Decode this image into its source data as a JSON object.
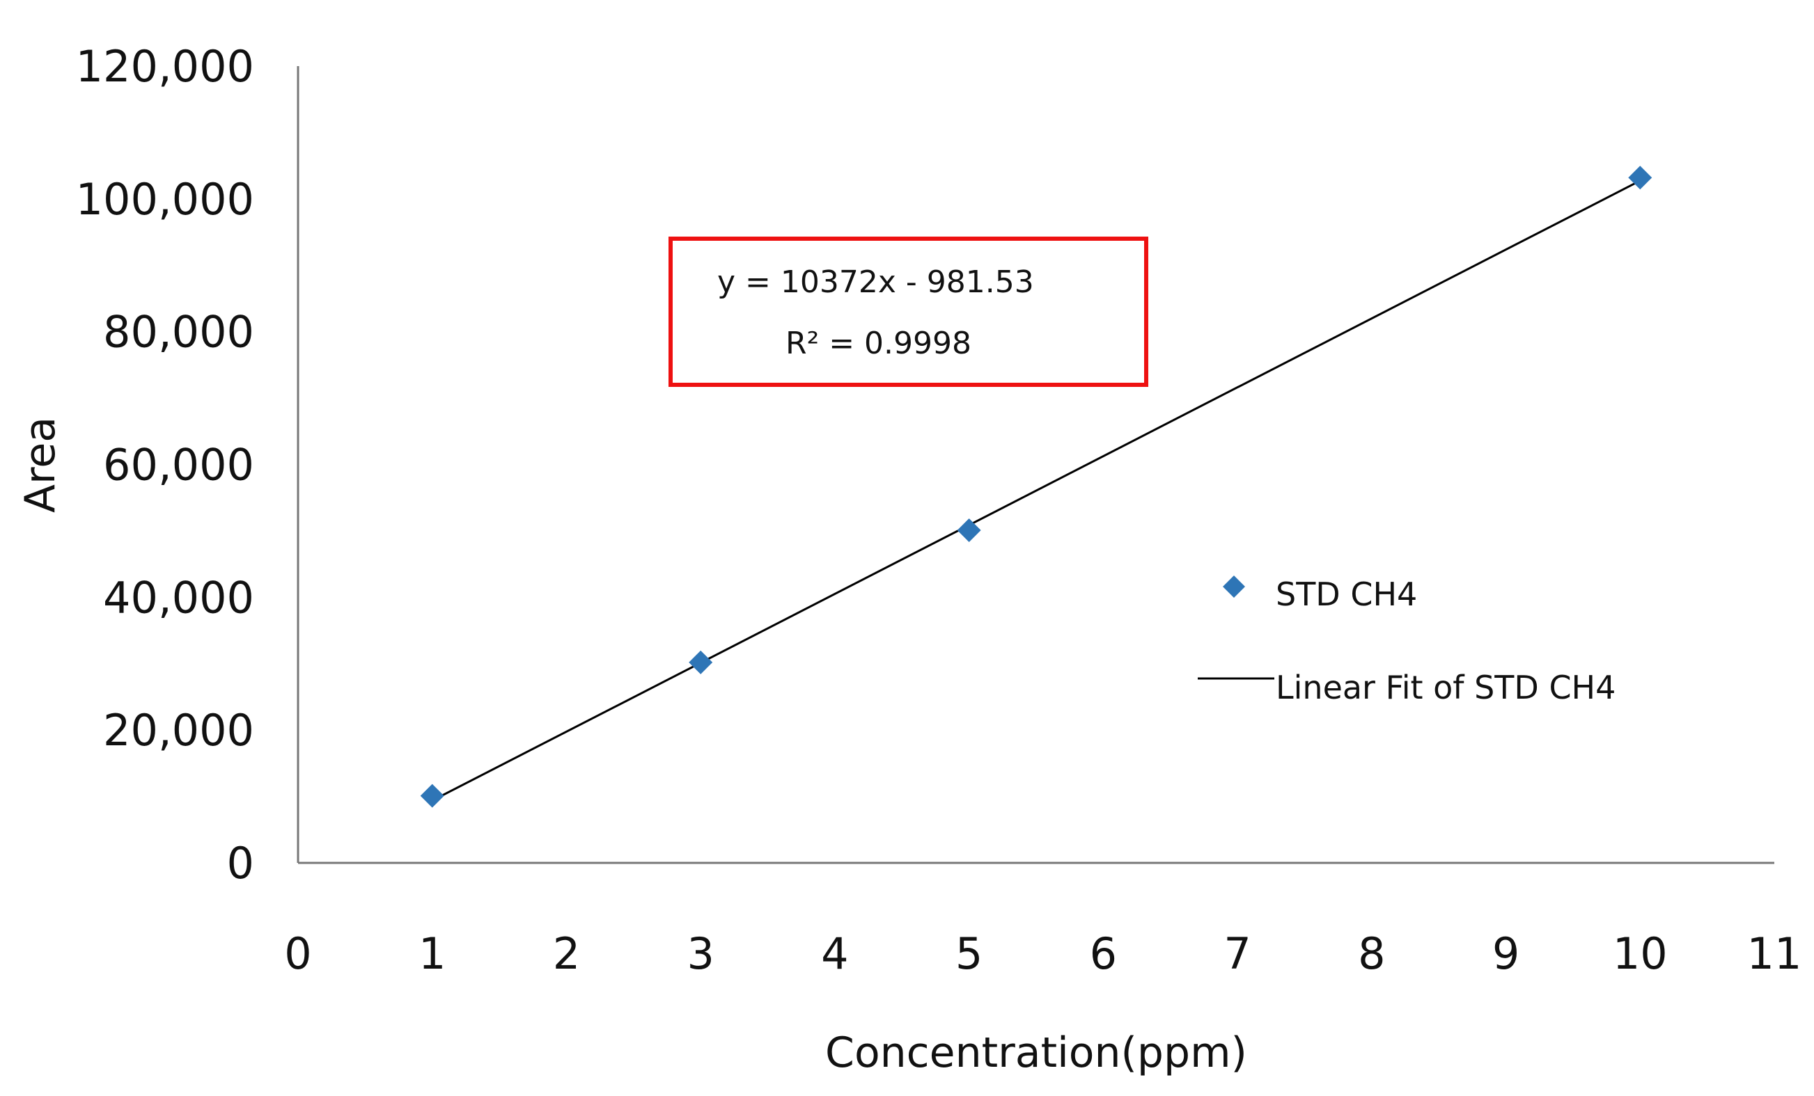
{
  "chart_data": {
    "type": "scatter",
    "title": "",
    "xlabel": "Concentration(ppm)",
    "ylabel": "Area",
    "xlim": [
      0,
      11
    ],
    "ylim": [
      0,
      120000
    ],
    "xticks": [
      0,
      1,
      2,
      3,
      4,
      5,
      6,
      7,
      8,
      9,
      10,
      11
    ],
    "xtick_labels": [
      "0",
      "1",
      "2",
      "3",
      "4",
      "5",
      "6",
      "7",
      "8",
      "9",
      "10",
      "11"
    ],
    "yticks": [
      0,
      20000,
      40000,
      60000,
      80000,
      100000,
      120000
    ],
    "ytick_labels": [
      "0",
      "20,000",
      "40,000",
      "60,000",
      "80,000",
      "100,000",
      "120,000"
    ],
    "grid": false,
    "legend_position": "right",
    "series": [
      {
        "name": "STD CH4",
        "kind": "scatter",
        "marker": "diamond",
        "color": "#2e75b6",
        "x": [
          1,
          3,
          5,
          10
        ],
        "y": [
          10100,
          30200,
          50100,
          103200
        ]
      },
      {
        "name": "Linear Fit of STD CH4",
        "kind": "line",
        "color": "#000000",
        "slope": 10372,
        "intercept": -981.53,
        "x_range": [
          1,
          10
        ]
      }
    ],
    "annotation": {
      "line1": "y = 10372x  - 981.53",
      "line2": "R² = 0.9998",
      "border_color": "#ee1111"
    }
  }
}
